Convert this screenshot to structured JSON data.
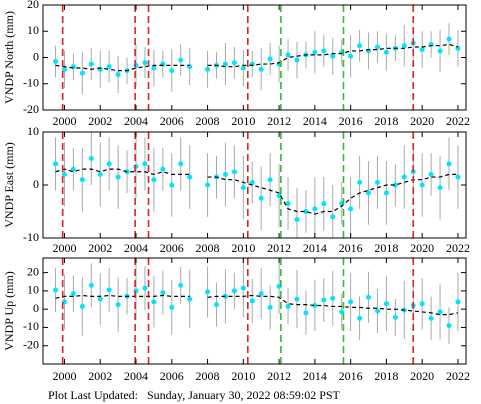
{
  "chart_data": [
    {
      "type": "scatter",
      "ylabel": "VNDP North (mm)",
      "xlim": [
        1998.8,
        2022.45
      ],
      "ylim": [
        -20,
        20
      ],
      "xticks": [
        2000,
        2002,
        2004,
        2006,
        2008,
        2010,
        2012,
        2014,
        2016,
        2018,
        2020,
        2022
      ],
      "yticks": [
        20,
        10,
        0,
        -10,
        -20
      ],
      "events": [
        {
          "x": 1999.9,
          "color": "#dd2222"
        },
        {
          "x": 2003.95,
          "color": "#dd2222"
        },
        {
          "x": 2004.7,
          "color": "#dd2222"
        },
        {
          "x": 2010.25,
          "color": "#dd2222"
        },
        {
          "x": 2012.1,
          "color": "#33bb33"
        },
        {
          "x": 2015.6,
          "color": "#33bb33"
        },
        {
          "x": 2019.5,
          "color": "#dd2222"
        }
      ],
      "x": [
        1999.5,
        2000,
        2000.5,
        2001,
        2001.5,
        2002,
        2002.5,
        2003,
        2003.5,
        2004,
        2004.5,
        2005,
        2005.5,
        2006,
        2006.5,
        2007,
        2007.5,
        2008,
        2008.5,
        2009,
        2009.5,
        2010,
        2010.5,
        2011,
        2011.5,
        2012,
        2012.5,
        2013,
        2013.5,
        2014,
        2014.5,
        2015,
        2015.5,
        2016,
        2016.5,
        2017,
        2017.5,
        2018,
        2018.5,
        2019,
        2019.5,
        2020,
        2020.5,
        2021,
        2021.5,
        2022
      ],
      "series": [
        {
          "type": "scatter",
          "color": "#00e5ff",
          "error_color": "#aaaaaa",
          "values": [
            -1.5,
            -4.5,
            -3.5,
            -6,
            -2.5,
            -4.5,
            -3.5,
            -6.5,
            -5,
            -3,
            -2,
            -4,
            -2.5,
            -5,
            -1,
            -3.5,
            null,
            -4.5,
            -3,
            -2.5,
            -2,
            -4,
            -2.5,
            -4.5,
            -0.5,
            -2.5,
            1,
            -1,
            1,
            2,
            2.5,
            0.5,
            2,
            0.5,
            4.5,
            2.5,
            4,
            2,
            3.5,
            4.5,
            5.5,
            3,
            5,
            2.5,
            7,
            3.5
          ],
          "errors": [
            6,
            7,
            5,
            8,
            6,
            7,
            6,
            7,
            5,
            8,
            6,
            7,
            5,
            8,
            6,
            7,
            null,
            7,
            5,
            8,
            6,
            7,
            5,
            8,
            6,
            7,
            6,
            7,
            5,
            8,
            6,
            7,
            5,
            8,
            6,
            7,
            6,
            7,
            5,
            8,
            6,
            7,
            5,
            8,
            6,
            7
          ]
        },
        {
          "type": "line",
          "color": "#000000",
          "dashed": true,
          "values": [
            -3,
            -3.5,
            -4,
            -4,
            -4.5,
            -4,
            -4.5,
            -5,
            -5,
            -4,
            -3.5,
            -3,
            -3,
            -3,
            -3,
            -3,
            null,
            -3,
            -3,
            -3.5,
            -3.5,
            -3,
            -3,
            -2.5,
            -2.5,
            -2,
            0,
            0.5,
            1,
            1,
            1,
            1.5,
            1.5,
            2.5,
            2.5,
            3,
            3,
            3.5,
            3.5,
            3.5,
            4,
            4,
            4.5,
            4.5,
            5,
            4
          ]
        }
      ]
    },
    {
      "type": "scatter",
      "ylabel": "VNDP East (mm)",
      "xlim": [
        1998.8,
        2022.45
      ],
      "ylim": [
        -10,
        10
      ],
      "xticks": [
        2000,
        2002,
        2004,
        2006,
        2008,
        2010,
        2012,
        2014,
        2016,
        2018,
        2020,
        2022
      ],
      "yticks": [
        10,
        0,
        -10
      ],
      "events": [
        {
          "x": 1999.9,
          "color": "#dd2222"
        },
        {
          "x": 2003.95,
          "color": "#dd2222"
        },
        {
          "x": 2004.7,
          "color": "#dd2222"
        },
        {
          "x": 2010.25,
          "color": "#dd2222"
        },
        {
          "x": 2012.1,
          "color": "#33bb33"
        },
        {
          "x": 2015.6,
          "color": "#33bb33"
        },
        {
          "x": 2019.5,
          "color": "#dd2222"
        }
      ],
      "x": [
        1999.5,
        2000,
        2000.5,
        2001,
        2001.5,
        2002,
        2002.5,
        2003,
        2003.5,
        2004,
        2004.5,
        2005,
        2005.5,
        2006,
        2006.5,
        2007,
        2007.5,
        2008,
        2008.5,
        2009,
        2009.5,
        2010,
        2010.5,
        2011,
        2011.5,
        2012,
        2012.5,
        2013,
        2013.5,
        2014,
        2014.5,
        2015,
        2015.5,
        2016,
        2016.5,
        2017,
        2017.5,
        2018,
        2018.5,
        2019,
        2019.5,
        2020,
        2020.5,
        2021,
        2021.5,
        2022
      ],
      "series": [
        {
          "type": "scatter",
          "color": "#00e5ff",
          "error_color": "#aaaaaa",
          "values": [
            4,
            2,
            3,
            1,
            5,
            2,
            4,
            1.5,
            2.5,
            3.5,
            4,
            1,
            3,
            0,
            4,
            1.5,
            null,
            0,
            1.5,
            2,
            2.5,
            -0.5,
            0.5,
            -2.5,
            1,
            -2,
            -3.5,
            -6.5,
            -5,
            -4.5,
            -3.5,
            -6,
            -3.5,
            -4.5,
            0.5,
            -1.5,
            0.5,
            -1.5,
            0,
            1.5,
            2.5,
            0,
            2,
            -0.5,
            4,
            1.5
          ],
          "errors": [
            5,
            6,
            4,
            6,
            5,
            6,
            5,
            6,
            4,
            6,
            5,
            6,
            4,
            6,
            5,
            6,
            null,
            6,
            4,
            6,
            5,
            6,
            4,
            6,
            5,
            6,
            5,
            6,
            4,
            6,
            5,
            6,
            4,
            6,
            5,
            6,
            5,
            6,
            4,
            6,
            5,
            6,
            4,
            6,
            5,
            6
          ]
        },
        {
          "type": "line",
          "color": "#000000",
          "dashed": true,
          "values": [
            2.5,
            3,
            2.5,
            3,
            3,
            2.5,
            3,
            3,
            2.5,
            2.5,
            2.5,
            2,
            2.5,
            2,
            2,
            2,
            null,
            1.5,
            1.5,
            1,
            1,
            0.5,
            0,
            -0.5,
            -1,
            -1.5,
            -4.5,
            -5,
            -5,
            -5.5,
            -5,
            -5,
            -4,
            -2.5,
            -1.5,
            -1,
            -0.5,
            0,
            0,
            0.5,
            1,
            1,
            1.5,
            1.5,
            2,
            2
          ]
        }
      ]
    },
    {
      "type": "scatter",
      "ylabel": "VNDP Up (mm)",
      "xlim": [
        1998.8,
        2022.45
      ],
      "ylim": [
        -30,
        28
      ],
      "xticks": [
        2000,
        2002,
        2004,
        2006,
        2008,
        2010,
        2012,
        2014,
        2016,
        2018,
        2020,
        2022
      ],
      "yticks": [
        20,
        10,
        0,
        -10,
        -20
      ],
      "events": [
        {
          "x": 1999.9,
          "color": "#dd2222"
        },
        {
          "x": 2003.95,
          "color": "#dd2222"
        },
        {
          "x": 2004.7,
          "color": "#dd2222"
        },
        {
          "x": 2010.25,
          "color": "#dd2222"
        },
        {
          "x": 2012.1,
          "color": "#33bb33"
        },
        {
          "x": 2015.6,
          "color": "#33bb33"
        },
        {
          "x": 2019.5,
          "color": "#dd2222"
        }
      ],
      "x": [
        1999.5,
        2000,
        2000.5,
        2001,
        2001.5,
        2002,
        2002.5,
        2003,
        2003.5,
        2004,
        2004.5,
        2005,
        2005.5,
        2006,
        2006.5,
        2007,
        2007.5,
        2008,
        2008.5,
        2009,
        2009.5,
        2010,
        2010.5,
        2011,
        2011.5,
        2012,
        2012.5,
        2013,
        2013.5,
        2014,
        2014.5,
        2015,
        2015.5,
        2016,
        2016.5,
        2017,
        2017.5,
        2018,
        2018.5,
        2019,
        2019.5,
        2020,
        2020.5,
        2021,
        2021.5,
        2022
      ],
      "series": [
        {
          "type": "scatter",
          "color": "#00e5ff",
          "error_color": "#aaaaaa",
          "values": [
            10.5,
            4,
            8.5,
            1.5,
            13,
            5.5,
            10.5,
            2.5,
            7,
            10,
            11.5,
            4,
            9,
            1,
            13,
            5.5,
            null,
            9.5,
            2.5,
            7,
            10,
            11.5,
            4.5,
            8.5,
            1,
            12.5,
            1.5,
            5.5,
            -2,
            2,
            5,
            6,
            -1.5,
            4,
            -5,
            6.5,
            -1,
            3,
            -4.5,
            -0.5,
            2,
            3,
            -5,
            -1.5,
            -9,
            4
          ],
          "errors": [
            12,
            15,
            10,
            16,
            12,
            14,
            12,
            15,
            10,
            16,
            12,
            14,
            12,
            15,
            10,
            16,
            null,
            14,
            12,
            15,
            10,
            16,
            12,
            14,
            12,
            15,
            10,
            16,
            12,
            14,
            12,
            15,
            10,
            16,
            12,
            14,
            12,
            15,
            10,
            16,
            12,
            14,
            12,
            15,
            10,
            16
          ]
        },
        {
          "type": "line",
          "color": "#000000",
          "dashed": true,
          "values": [
            6,
            7,
            7,
            7.5,
            7,
            7,
            7.5,
            7,
            7,
            7,
            7,
            7,
            7.5,
            7,
            7,
            7,
            null,
            6.5,
            7,
            7,
            7,
            7,
            7.5,
            7,
            7,
            6.5,
            3,
            2.5,
            2.5,
            2,
            2,
            1.5,
            1.5,
            1,
            1,
            0.5,
            0.5,
            0,
            0,
            -0.5,
            -1,
            -1.5,
            -2,
            -3,
            -3,
            -2
          ]
        }
      ]
    }
  ],
  "footer": "Plot Last Updated:   Sunday, January 30, 2022 08:59:02 PST"
}
